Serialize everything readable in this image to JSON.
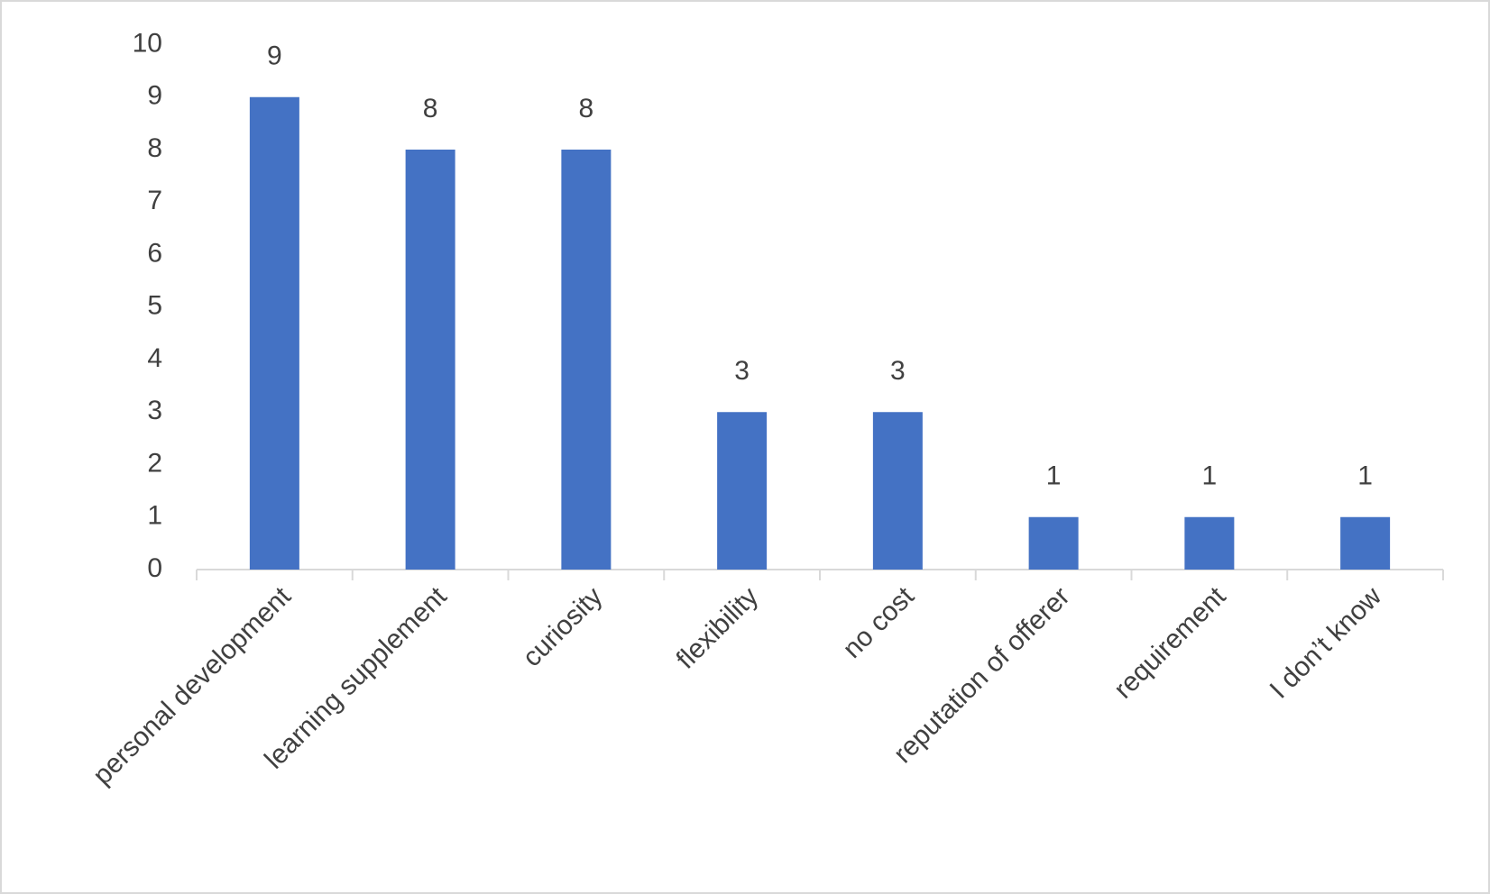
{
  "chart_data": {
    "type": "bar",
    "categories": [
      "personal development",
      "learning supplement",
      "curiosity",
      "flexibility",
      "no cost",
      "reputation of offerer",
      "requirement",
      "I don’t know"
    ],
    "values": [
      9,
      8,
      8,
      3,
      3,
      1,
      1,
      1
    ],
    "color": "#4472c4",
    "ylim": [
      0,
      10
    ],
    "yticks": [
      0,
      1,
      2,
      3,
      4,
      5,
      6,
      7,
      8,
      9,
      10
    ],
    "grid": false
  }
}
